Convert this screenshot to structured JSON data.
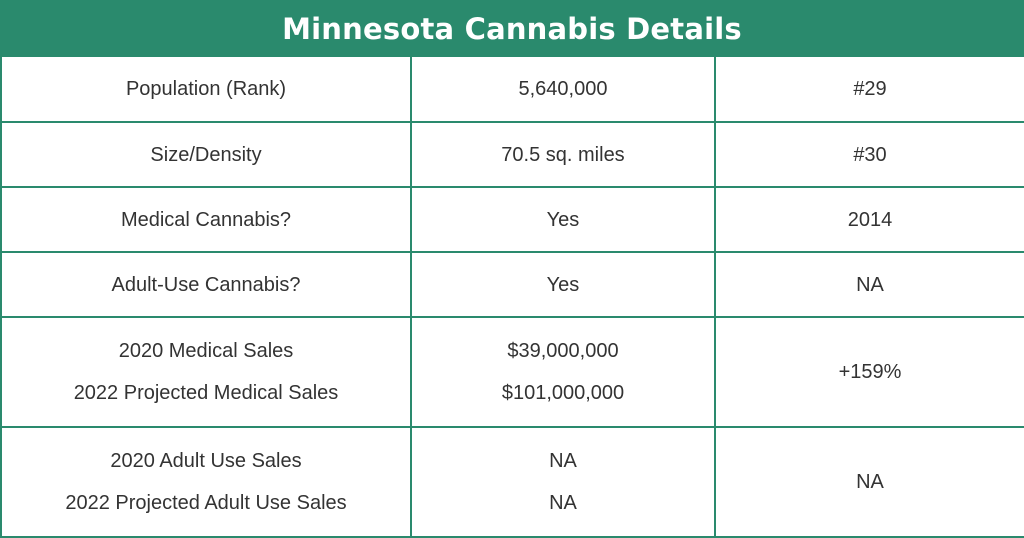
{
  "title": "Minnesota Cannabis Details",
  "rows": [
    {
      "label": "Population (Rank)",
      "value": "5,640,000",
      "extra": "#29"
    },
    {
      "label": "Size/Density",
      "value": "70.5 sq. miles",
      "extra": "#30"
    },
    {
      "label": "Medical Cannabis?",
      "value": "Yes",
      "extra": "2014"
    },
    {
      "label": "Adult-Use Cannabis?",
      "value": "Yes",
      "extra": "NA"
    }
  ],
  "medical_sales": {
    "label_2020": "2020 Medical Sales",
    "label_2022": "2022 Projected Medical Sales",
    "value_2020": "$39,000,000",
    "value_2022": "$101,000,000",
    "change": "+159%"
  },
  "adult_sales": {
    "label_2020": "2020 Adult Use Sales",
    "label_2022": "2022 Projected Adult Use Sales",
    "value_2020": "NA",
    "value_2022": "NA",
    "change": "NA"
  },
  "colors": {
    "accent": "#2a8a6d",
    "text": "#333333",
    "title_text": "#ffffff"
  }
}
